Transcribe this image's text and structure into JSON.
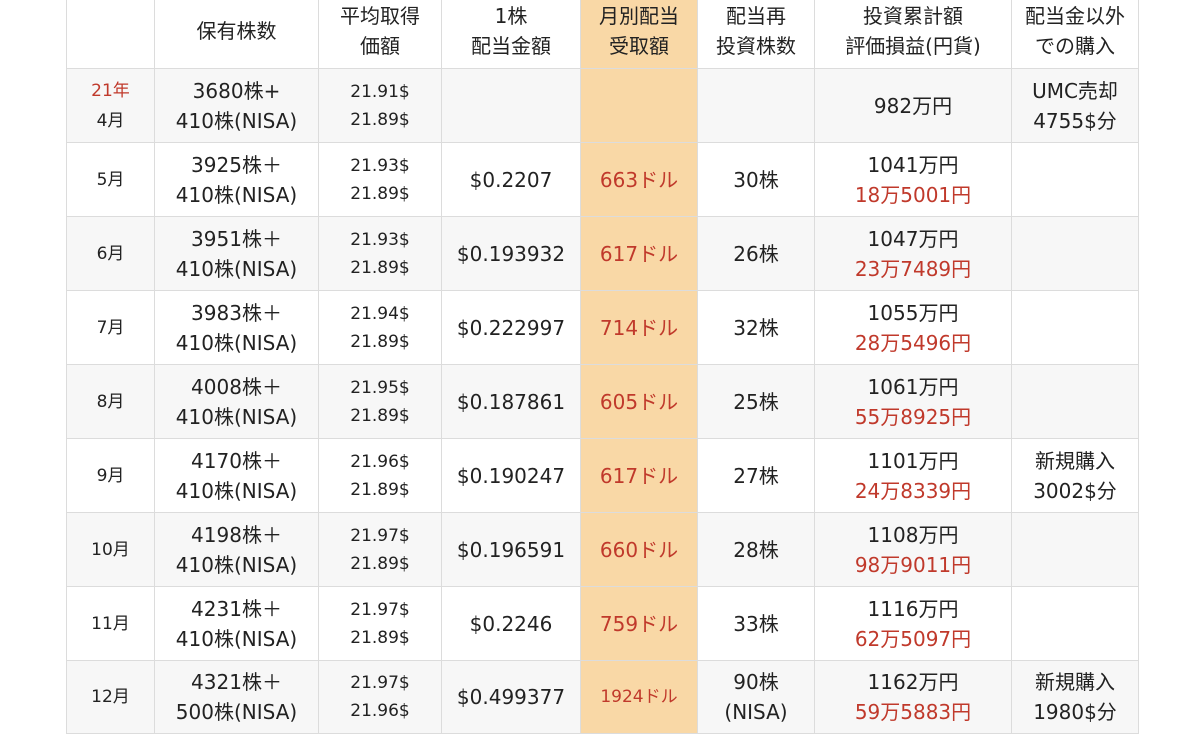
{
  "headers": [
    {
      "lines": [
        ""
      ]
    },
    {
      "lines": [
        "保有株数"
      ]
    },
    {
      "lines": [
        "平均取得",
        "価額"
      ]
    },
    {
      "lines": [
        "1株",
        "配当金額"
      ]
    },
    {
      "lines": [
        "月別配当",
        "受取額"
      ]
    },
    {
      "lines": [
        "配当再",
        "投資株数"
      ]
    },
    {
      "lines": [
        "投資累計額",
        "評価損益(円貨)"
      ]
    },
    {
      "lines": [
        "配当金以外",
        "での購入"
      ]
    }
  ],
  "rows": [
    {
      "year": "21年",
      "month": "4月",
      "shares": [
        "3680株+",
        "410株(NISA)"
      ],
      "avg_price": [
        "21.91$",
        "21.89$"
      ],
      "dividend_per_share": "",
      "monthly_dividend": "",
      "reinvest_shares": [
        ""
      ],
      "invest_total": "982万円",
      "gain": "",
      "other_purchase": [
        "UMC売却",
        "4755$分"
      ]
    },
    {
      "year": "",
      "month": "5月",
      "shares": [
        "3925株＋",
        "410株(NISA)"
      ],
      "avg_price": [
        "21.93$",
        "21.89$"
      ],
      "dividend_per_share": "$0.2207",
      "monthly_dividend": "663ドル",
      "reinvest_shares": [
        "30株"
      ],
      "invest_total": "1041万円",
      "gain": "18万5001円",
      "other_purchase": [
        "",
        ""
      ]
    },
    {
      "year": "",
      "month": "6月",
      "shares": [
        "3951株＋",
        "410株(NISA)"
      ],
      "avg_price": [
        "21.93$",
        "21.89$"
      ],
      "dividend_per_share": "$0.193932",
      "monthly_dividend": "617ドル",
      "reinvest_shares": [
        "26株"
      ],
      "invest_total": "1047万円",
      "gain": "23万7489円",
      "other_purchase": [
        "",
        ""
      ]
    },
    {
      "year": "",
      "month": "7月",
      "shares": [
        "3983株＋",
        "410株(NISA)"
      ],
      "avg_price": [
        "21.94$",
        "21.89$"
      ],
      "dividend_per_share": "$0.222997",
      "monthly_dividend": "714ドル",
      "reinvest_shares": [
        "32株"
      ],
      "invest_total": "1055万円",
      "gain": "28万5496円",
      "other_purchase": [
        "",
        ""
      ]
    },
    {
      "year": "",
      "month": "8月",
      "shares": [
        "4008株＋",
        "410株(NISA)"
      ],
      "avg_price": [
        "21.95$",
        "21.89$"
      ],
      "dividend_per_share": "$0.187861",
      "monthly_dividend": "605ドル",
      "reinvest_shares": [
        "25株"
      ],
      "invest_total": "1061万円",
      "gain": "55万8925円",
      "other_purchase": [
        "",
        ""
      ]
    },
    {
      "year": "",
      "month": "9月",
      "shares": [
        "4170株＋",
        "410株(NISA)"
      ],
      "avg_price": [
        "21.96$",
        "21.89$"
      ],
      "dividend_per_share": "$0.190247",
      "monthly_dividend": "617ドル",
      "reinvest_shares": [
        "27株"
      ],
      "invest_total": "1101万円",
      "gain": "24万8339円",
      "other_purchase": [
        "新規購入",
        "3002$分"
      ]
    },
    {
      "year": "",
      "month": "10月",
      "shares": [
        "4198株＋",
        "410株(NISA)"
      ],
      "avg_price": [
        "21.97$",
        "21.89$"
      ],
      "dividend_per_share": "$0.196591",
      "monthly_dividend": "660ドル",
      "reinvest_shares": [
        "28株"
      ],
      "invest_total": "1108万円",
      "gain": "98万9011円",
      "other_purchase": [
        "",
        ""
      ]
    },
    {
      "year": "",
      "month": "11月",
      "shares": [
        "4231株＋",
        "410株(NISA)"
      ],
      "avg_price": [
        "21.97$",
        "21.89$"
      ],
      "dividend_per_share": "$0.2246",
      "monthly_dividend": "759ドル",
      "reinvest_shares": [
        "33株"
      ],
      "invest_total": "1116万円",
      "gain": "62万5097円",
      "other_purchase": [
        "",
        ""
      ]
    },
    {
      "year": "",
      "month": "12月",
      "shares": [
        "4321株＋",
        "500株(NISA)"
      ],
      "avg_price": [
        "21.97$",
        "21.96$"
      ],
      "dividend_per_share": "$0.499377",
      "monthly_dividend": "1924ドル",
      "reinvest_shares": [
        "90株",
        "(NISA)"
      ],
      "invest_total": "1162万円",
      "gain": "59万5883円",
      "other_purchase": [
        "新規購入",
        "1980$分"
      ]
    }
  ],
  "colors": {
    "highlight_column": "#f9d8a6",
    "red_text": "#c0392b",
    "border": "#dcdcdc",
    "row_alt": "#f7f7f7"
  }
}
